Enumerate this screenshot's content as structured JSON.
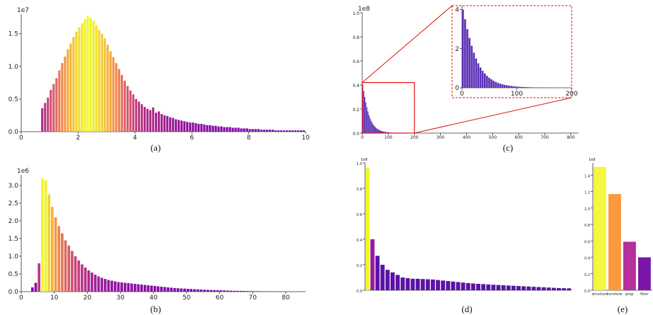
{
  "chart_data": [
    {
      "panel": "(a)",
      "type": "bar",
      "x_ticks": [
        "0",
        "2",
        "4",
        "6",
        "8",
        "10"
      ],
      "y_ticks": [
        "0.0",
        "0.5",
        "1.0",
        "1.5"
      ],
      "y_scale_label": "1e7",
      "xlim": [
        0,
        10
      ],
      "ylim": [
        0,
        18000000
      ],
      "bin_start": 0.7,
      "bin_width": 0.1,
      "values": [
        3600000,
        4400000,
        5200000,
        6400000,
        7300000,
        8200000,
        9400000,
        10500000,
        11500000,
        12600000,
        13500000,
        14500000,
        15300000,
        16000000,
        16600000,
        17200000,
        17700000,
        17400000,
        17000000,
        16300000,
        15600000,
        15000000,
        14300000,
        13300000,
        12300000,
        11400000,
        10500000,
        9600000,
        8700000,
        7800000,
        7000000,
        6300000,
        5700000,
        5000000,
        4600000,
        4200000,
        3800000,
        3500000,
        3300000,
        3700000,
        2900000,
        3100000,
        2700000,
        2500000,
        2400000,
        2200000,
        2100000,
        1900000,
        1800000,
        1700000,
        1600000,
        1500000,
        1400000,
        1400000,
        1300000,
        1200000,
        1200000,
        1100000,
        1000000,
        1000000,
        900000,
        900000,
        800000,
        800000,
        700000,
        700000,
        700000,
        600000,
        600000,
        600000,
        500000,
        500000,
        500000,
        400000,
        400000,
        400000,
        400000,
        300000,
        300000,
        300000,
        300000,
        300000,
        200000,
        200000,
        200000,
        200000,
        200000,
        200000,
        200000,
        200000,
        200000,
        200000,
        200000
      ]
    },
    {
      "panel": "(b)",
      "type": "bar",
      "x_ticks": [
        "0",
        "10",
        "20",
        "30",
        "40",
        "50",
        "60",
        "70",
        "80"
      ],
      "y_ticks": [
        "0.0",
        "0.5",
        "1.0",
        "1.5",
        "2.0",
        "2.5",
        "3.0"
      ],
      "y_scale_label": "1e6",
      "xlim": [
        0,
        86
      ],
      "ylim": [
        0,
        3300000
      ],
      "bin_start": 3,
      "bin_width": 1,
      "values": [
        120000,
        250000,
        800000,
        3200000,
        3150000,
        2750000,
        2400000,
        2100000,
        1850000,
        1650000,
        1450000,
        1300000,
        1150000,
        1000000,
        880000,
        770000,
        680000,
        600000,
        540000,
        480000,
        430000,
        390000,
        360000,
        330000,
        310000,
        290000,
        270000,
        260000,
        250000,
        240000,
        230000,
        220000,
        210000,
        200000,
        190000,
        180000,
        170000,
        160000,
        150000,
        140000,
        130000,
        120000,
        110000,
        100000,
        95000,
        90000,
        85000,
        80000,
        75000,
        70000,
        65000,
        60000,
        55000,
        50000,
        46000,
        43000,
        40000,
        37000,
        34000,
        31000,
        28000,
        25000,
        23000,
        21000,
        19000,
        17000,
        15000,
        13000,
        12000,
        11000,
        10000,
        9000,
        8000,
        7000,
        6000,
        5000,
        4000,
        3000,
        2000,
        1500,
        1000,
        800,
        500
      ]
    },
    {
      "panel": "(c)",
      "type": "bar",
      "x_ticks": [
        "0",
        "100",
        "200",
        "300",
        "400",
        "500",
        "600",
        "700",
        "800"
      ],
      "y_ticks": [
        "0.0",
        "0.2",
        "0.4",
        "0.6",
        "0.8",
        "1.0"
      ],
      "y_scale_label": "1e8",
      "xlim": [
        0,
        830
      ],
      "ylim": [
        0,
        100000000
      ],
      "inset": {
        "x_ticks": [
          "0",
          "100",
          "200"
        ],
        "y_ticks": [
          "0",
          "2",
          "4"
        ],
        "xlim": [
          0,
          200
        ],
        "ylim": [
          0,
          4.2
        ]
      },
      "decay_values": [
        4.0,
        3.5,
        3.0,
        2.55,
        2.15,
        1.8,
        1.5,
        1.25,
        1.04,
        0.87,
        0.73,
        0.61,
        0.51,
        0.43,
        0.36,
        0.3,
        0.25,
        0.21,
        0.18,
        0.15,
        0.13,
        0.11,
        0.095,
        0.08,
        0.068,
        0.058,
        0.05,
        0.043,
        0.037,
        0.032,
        0.028,
        0.024,
        0.021,
        0.018,
        0.016,
        0.014,
        0.012,
        0.011,
        0.01,
        0.009,
        0.008,
        0.007,
        0.0065,
        0.006,
        0.0055,
        0.005,
        0.0045,
        0.004,
        0.0035,
        0.003
      ]
    },
    {
      "panel": "(d)",
      "type": "bar",
      "y_ticks": [
        "0.0",
        "0.2",
        "0.4",
        "0.6",
        "0.8",
        "1.0"
      ],
      "y_scale_label": "1e8",
      "ylim": [
        0,
        100000000
      ],
      "values": [
        96000000,
        40000000,
        27000000,
        20000000,
        16000000,
        14000000,
        12000000,
        10000000,
        9500000,
        9000000,
        9000000,
        8800000,
        8600000,
        8400000,
        8000000,
        7600000,
        7200000,
        6800000,
        6400000,
        6000000,
        5600000,
        5300000,
        5000000,
        4800000,
        4500000,
        4300000,
        4100000,
        3900000,
        3700000,
        3500000,
        3300000,
        3100000,
        2900000,
        2700000,
        2500000,
        2300000,
        2100000,
        1900000,
        1700000,
        1600000,
        1500000
      ]
    },
    {
      "panel": "(e)",
      "type": "bar",
      "categories": [
        "structure",
        "furniture",
        "prop",
        "floor"
      ],
      "values": [
        150000000,
        117000000,
        59000000,
        40000000
      ],
      "colors": [
        "#f5f542",
        "#fb9a3c",
        "#b5309b",
        "#7b16a8"
      ],
      "y_ticks": [
        "0.0",
        "0.2",
        "0.4",
        "0.6",
        "0.8",
        "1.0",
        "1.2",
        "1.4"
      ],
      "y_scale_label": "1e8",
      "ylim": [
        0,
        155000000
      ]
    }
  ]
}
